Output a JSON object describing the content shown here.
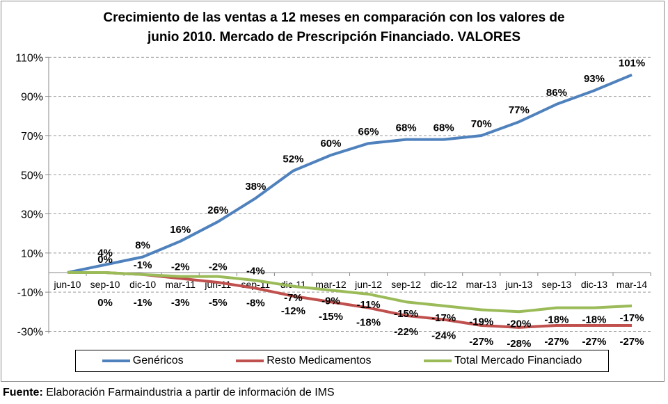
{
  "chart_data": {
    "type": "line",
    "title": "Crecimiento de las ventas a 12 meses en comparación con los valores de junio 2010. Mercado de Prescripción Financiado. VALORES",
    "title_lines": [
      "Crecimiento de las ventas a 12 meses en comparación con los valores de",
      "junio 2010. Mercado de Prescripción Financiado. VALORES"
    ],
    "categories": [
      "jun-10",
      "sep-10",
      "dic-10",
      "mar-11",
      "jun-11",
      "sep-11",
      "dic-11",
      "mar-12",
      "jun-12",
      "sep-12",
      "dic-12",
      "mar-13",
      "jun-13",
      "sep-13",
      "dic-13",
      "mar-14"
    ],
    "ylim": [
      -30,
      110
    ],
    "yticks": [
      110,
      90,
      70,
      50,
      30,
      10,
      -10,
      -30
    ],
    "ytick_labels": [
      "110%",
      "90%",
      "70%",
      "50%",
      "30%",
      "10%",
      "-10%",
      "-30%"
    ],
    "grid": "horizontal dashed",
    "legend_position": "bottom",
    "series": [
      {
        "name": "Genéricos",
        "color": "#4F81BD",
        "values": [
          0,
          4,
          8,
          16,
          26,
          38,
          52,
          60,
          66,
          68,
          68,
          70,
          77,
          86,
          93,
          101
        ],
        "labels": [
          "",
          "4%",
          "8%",
          "16%",
          "26%",
          "38%",
          "52%",
          "60%",
          "66%",
          "68%",
          "68%",
          "70%",
          "77%",
          "86%",
          "93%",
          "101%"
        ]
      },
      {
        "name": "Resto Medicamentos",
        "color": "#C0504D",
        "values": [
          0,
          0,
          -1,
          -3,
          -5,
          -8,
          -12,
          -15,
          -18,
          -22,
          -24,
          -27,
          -28,
          -27,
          -27,
          -27
        ],
        "labels": [
          "",
          "0%",
          "-1%",
          "-3%",
          "-5%",
          "-8%",
          "-12%",
          "-15%",
          "-18%",
          "-22%",
          "-24%",
          "-27%",
          "-28%",
          "-27%",
          "-27%",
          "-27%"
        ]
      },
      {
        "name": "Total Mercado Financiado",
        "color": "#9BBB59",
        "values": [
          0,
          0,
          -1,
          -2,
          -2,
          -4,
          -7,
          -9,
          -11,
          -15,
          -17,
          -19,
          -20,
          -18,
          -18,
          -17
        ],
        "labels": [
          "",
          "0%",
          "-1%",
          "-2%",
          "-2%",
          "-4%",
          "-7%",
          "-9%",
          "-11%",
          "-15%",
          "-17%",
          "-19%",
          "-20%",
          "-18%",
          "-18%",
          "-17%"
        ]
      }
    ]
  },
  "footer": {
    "label": "Fuente:",
    "text": " Elaboración Farmaindustria a partir de información de IMS"
  }
}
